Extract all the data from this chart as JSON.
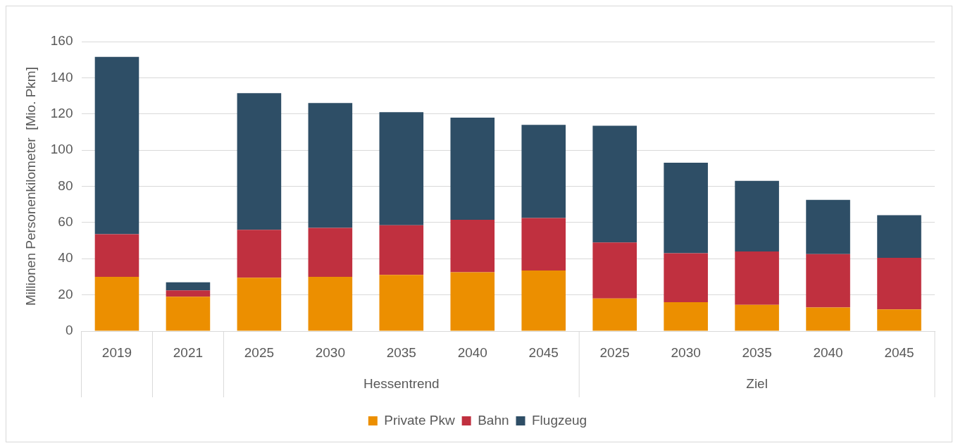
{
  "chart_data": {
    "type": "bar",
    "stacked": true,
    "ylabel": "Millionen Personenkilometer  [Mio. Pkm]",
    "categories": [
      "2019",
      "2021",
      "2025",
      "2030",
      "2035",
      "2040",
      "2045",
      "2025",
      "2030",
      "2035",
      "2040",
      "2045"
    ],
    "series": [
      {
        "name": "Private Pkw",
        "color": "#ec8f00",
        "values": [
          30,
          19,
          29.5,
          30,
          31,
          32.5,
          33.5,
          18,
          16,
          14.5,
          13,
          12
        ]
      },
      {
        "name": "Bahn",
        "color": "#c0303f",
        "values": [
          23.5,
          3.5,
          26.5,
          27,
          27.5,
          29,
          29,
          31,
          27,
          29.5,
          29.5,
          28.5
        ]
      },
      {
        "name": "Flugzeug",
        "color": "#2e4e66",
        "values": [
          98,
          4.5,
          75.5,
          69,
          62.5,
          56.5,
          51.5,
          64.5,
          50,
          39,
          30,
          23.5
        ]
      }
    ],
    "ylim": [
      0,
      160
    ],
    "yticks": [
      0,
      20,
      40,
      60,
      80,
      100,
      120,
      140,
      160
    ],
    "grid": "y",
    "legend": "bottom",
    "annotations": [
      "Hessentrend",
      "Ziel"
    ]
  }
}
